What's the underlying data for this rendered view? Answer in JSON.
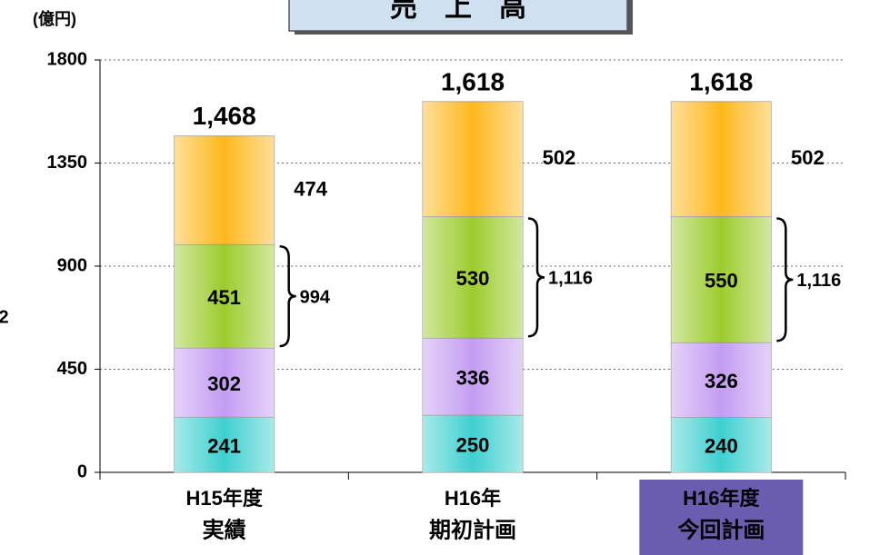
{
  "chart_data": {
    "type": "stacked_bar",
    "title": "売　上　高",
    "unit_label": "(億円)",
    "annotation": "2",
    "categories": [
      "H15年度",
      "H16年",
      "H16年度"
    ],
    "category_notes": [
      "実績",
      "期初計画",
      "今回計画"
    ],
    "highlight_category": 2,
    "series": [
      {
        "color": "#3fd0d0",
        "values": [
          241,
          250,
          240
        ]
      },
      {
        "color": "#c49cf2",
        "values": [
          302,
          336,
          326
        ]
      },
      {
        "color": "#9ccc2c",
        "values": [
          451,
          530,
          550
        ]
      },
      {
        "color": "#ffb81c",
        "values": [
          474,
          502,
          502
        ]
      }
    ],
    "totals": {
      "values": [
        1468,
        1618,
        1618
      ],
      "value_labels": [
        "1,468",
        "1,618",
        "1,618"
      ]
    },
    "subtotals": {
      "values": [
        994,
        1116,
        1116
      ],
      "value_labels": [
        "994",
        "1,116",
        "1,116"
      ]
    },
    "ylim": [
      0,
      1800
    ],
    "yticks": [
      0,
      450,
      900,
      1350,
      1800
    ],
    "grid": true
  }
}
